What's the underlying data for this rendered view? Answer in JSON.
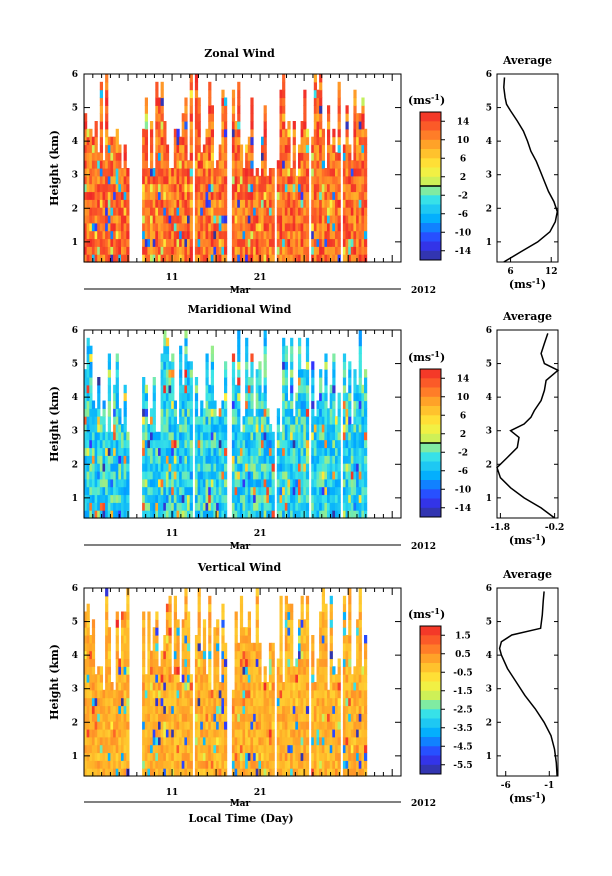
{
  "figure": {
    "xlabel": "Local Time (Day)",
    "month_label": "Mar",
    "year_label": "2012",
    "x_ticks": [
      "11",
      "21"
    ]
  },
  "chart_data": [
    {
      "type": "heatmap",
      "title": "Zonal Wind",
      "ylabel": "Height (km)",
      "ylim": [
        0.4,
        6
      ],
      "yticks": [
        "1",
        "2",
        "3",
        "4",
        "5",
        "6"
      ],
      "xlim": [
        1,
        37
      ],
      "x_ticks": [
        11,
        21
      ],
      "colorbar": {
        "unit": "(ms",
        "unit_sup": "-1",
        "unit_close": ")",
        "range": [
          -16,
          16
        ],
        "tick_labels": [
          "14",
          "10",
          "6",
          "2",
          "-2",
          "-6",
          "-10",
          "-14"
        ],
        "tick_values": [
          14,
          10,
          6,
          2,
          -2,
          -6,
          -10,
          -14
        ],
        "zero_line": 0
      },
      "dominant_value_range": [
        8,
        16
      ],
      "average_profile": {
        "title": "Average",
        "xlabel": "(ms",
        "xlabel_sup": "-1",
        "xlabel_close": ")",
        "xlim": [
          4,
          13
        ],
        "xtick_values": [
          6,
          12
        ],
        "xtick_labels": [
          "6",
          "12"
        ],
        "height": [
          0.4,
          0.7,
          1.0,
          1.3,
          1.6,
          1.9,
          2.2,
          2.5,
          2.8,
          3.1,
          3.4,
          3.7,
          4.0,
          4.3,
          4.6,
          4.9,
          5.1,
          5.3,
          5.6,
          5.9
        ],
        "value": [
          5.0,
          7.5,
          10.0,
          11.8,
          12.6,
          12.9,
          12.4,
          11.6,
          11.0,
          10.4,
          9.8,
          9.0,
          8.5,
          7.9,
          7.0,
          6.0,
          5.4,
          5.2,
          5.0,
          5.1
        ]
      }
    },
    {
      "type": "heatmap",
      "title": "Maridional Wind",
      "ylabel": "Height (km)",
      "ylim": [
        0.4,
        6
      ],
      "yticks": [
        "1",
        "2",
        "3",
        "4",
        "5",
        "6"
      ],
      "xlim": [
        1,
        37
      ],
      "x_ticks": [
        11,
        21
      ],
      "colorbar": {
        "unit": "(ms",
        "unit_sup": "-1",
        "unit_close": ")",
        "range": [
          -16,
          16
        ],
        "tick_labels": [
          "14",
          "10",
          "6",
          "2",
          "-2",
          "-6",
          "-10",
          "-14"
        ],
        "tick_values": [
          14,
          10,
          6,
          2,
          -2,
          -6,
          -10,
          -14
        ],
        "zero_line": 0
      },
      "dominant_value_range": [
        -8,
        0
      ],
      "average_profile": {
        "title": "Average",
        "xlabel": "(ms",
        "xlabel_sup": "-1",
        "xlabel_close": ")",
        "xlim": [
          -1.9,
          -0.1
        ],
        "xtick_values": [
          -1.8,
          -0.2
        ],
        "xtick_labels": [
          "-1.8",
          "-0.2"
        ],
        "height": [
          0.4,
          0.7,
          1.0,
          1.3,
          1.6,
          1.9,
          2.2,
          2.5,
          2.8,
          3.0,
          3.2,
          3.4,
          3.6,
          3.9,
          4.2,
          4.5,
          4.8,
          5.0,
          5.3,
          5.6,
          5.9
        ],
        "value": [
          -0.2,
          -0.6,
          -1.1,
          -1.5,
          -1.8,
          -1.9,
          -1.6,
          -1.3,
          -1.25,
          -1.5,
          -1.1,
          -0.9,
          -0.8,
          -0.6,
          -0.5,
          -0.45,
          -0.1,
          -0.5,
          -0.6,
          -0.5,
          -0.4
        ]
      }
    },
    {
      "type": "heatmap",
      "title": "Vertical Wind",
      "ylabel": "Height (km)",
      "ylim": [
        0.4,
        6
      ],
      "yticks": [
        "1",
        "2",
        "3",
        "4",
        "5",
        "6"
      ],
      "xlim": [
        1,
        37
      ],
      "x_ticks": [
        11,
        21
      ],
      "colorbar": {
        "unit": "(ms",
        "unit_sup": "-1",
        "unit_close": ")",
        "range": [
          -6,
          2
        ],
        "tick_labels": [
          "1.5",
          "0.5",
          "-0.5",
          "-1.5",
          "-2.5",
          "-3.5",
          "-4.5",
          "-5.5"
        ],
        "tick_values": [
          1.5,
          0.5,
          -0.5,
          -1.5,
          -2.5,
          -3.5,
          -4.5,
          -5.5
        ],
        "zero_line": null
      },
      "dominant_value_range": [
        -0.5,
        0.5
      ],
      "average_profile": {
        "title": "Average",
        "xlabel": "(ms",
        "xlabel_sup": "-1",
        "xlabel_close": ")",
        "xlim": [
          -7,
          0
        ],
        "xtick_values": [
          -6,
          -1
        ],
        "xtick_labels": [
          "-6",
          "-1"
        ],
        "height": [
          0.4,
          0.8,
          1.2,
          1.6,
          2.0,
          2.4,
          2.8,
          3.2,
          3.6,
          4.0,
          4.2,
          4.4,
          4.6,
          4.8,
          5.2,
          5.6,
          5.9
        ],
        "value": [
          -0.1,
          -0.2,
          -0.4,
          -0.8,
          -1.6,
          -2.6,
          -3.8,
          -4.8,
          -5.8,
          -6.5,
          -6.7,
          -6.5,
          -5.3,
          -2.0,
          -1.8,
          -1.7,
          -1.6
        ]
      }
    }
  ]
}
